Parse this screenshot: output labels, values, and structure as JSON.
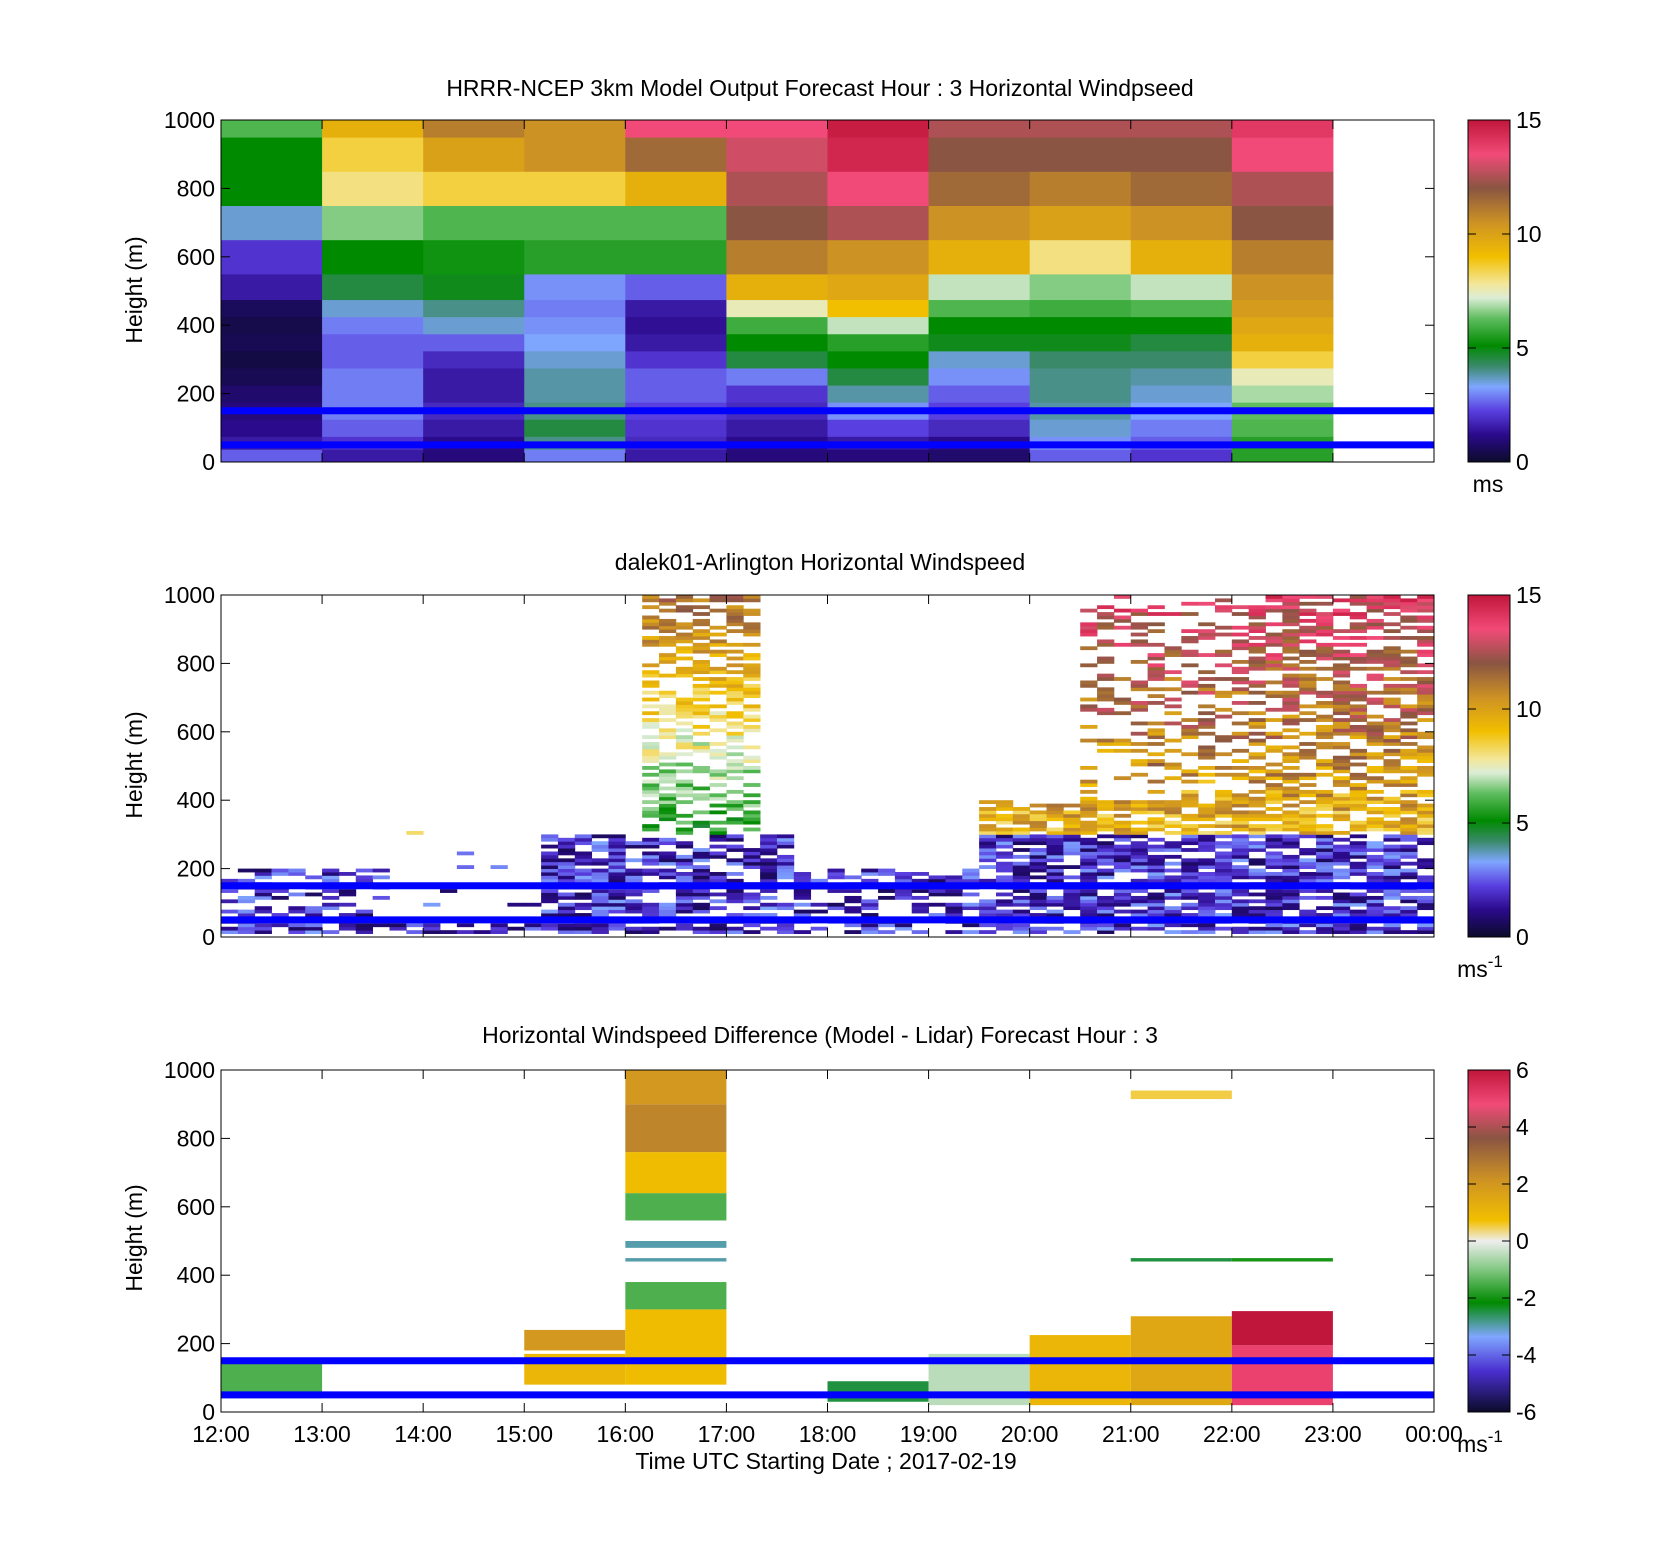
{
  "figure": {
    "xticks": [
      "12:00",
      "13:00",
      "14:00",
      "15:00",
      "16:00",
      "17:00",
      "18:00",
      "19:00",
      "20:00",
      "21:00",
      "22:00",
      "23:00",
      "00:00"
    ],
    "xlabel": "Time UTC  Starting Date ; 2017-02-19",
    "yticks": [
      "0",
      "200",
      "400",
      "600",
      "800",
      "1000"
    ],
    "ylabel": "Height (m)",
    "reference_lines": {
      "heights_m": [
        50,
        150
      ],
      "color": "#0000ff"
    }
  },
  "chart_data": [
    {
      "type": "heatmap",
      "title": "HRRR-NCEP 3km Model Output   Forecast Hour : 3 Horizontal Windpseed",
      "ylabel": "Height (m)",
      "ylim": [
        0,
        1000
      ],
      "xlim_hours": [
        12,
        24
      ],
      "colorbar": {
        "ticks": [
          "0",
          "5",
          "10",
          "15"
        ],
        "range": [
          0,
          15
        ],
        "unit_label": "ms"
      },
      "levels_m": [
        25,
        50,
        100,
        150,
        200,
        250,
        300,
        350,
        400,
        450,
        500,
        600,
        700,
        800,
        900,
        1000
      ],
      "columns": [
        {
          "hour": "12:00",
          "speeds": [
            2.5,
            1.5,
            1.2,
            1.0,
            0.8,
            0.5,
            0.3,
            0.5,
            0.4,
            0.6,
            1.5,
            2.0,
            3.5,
            5.0,
            5.0,
            6.0
          ]
        },
        {
          "hour": "13:00",
          "speeds": [
            1.5,
            2.0,
            2.5,
            2.8,
            2.8,
            2.8,
            2.5,
            2.5,
            2.8,
            3.5,
            4.5,
            5.0,
            6.5,
            8.0,
            8.5,
            9.5
          ]
        },
        {
          "hour": "14:00",
          "speeds": [
            1.0,
            1.2,
            1.5,
            1.8,
            1.5,
            1.5,
            1.8,
            2.5,
            3.5,
            4.0,
            4.8,
            5.2,
            6.0,
            8.5,
            10.0,
            11.0
          ]
        },
        {
          "hour": "15:00",
          "speeds": [
            2.8,
            4.0,
            4.5,
            4.0,
            3.8,
            3.8,
            3.5,
            3.2,
            3.0,
            2.8,
            3.0,
            5.5,
            6.0,
            8.5,
            10.5,
            10.5
          ]
        },
        {
          "hour": "16:00",
          "speeds": [
            1.5,
            1.8,
            2.0,
            2.2,
            2.5,
            2.5,
            2.0,
            1.5,
            1.3,
            1.5,
            2.5,
            5.5,
            6.0,
            9.5,
            11.5,
            13.5
          ]
        },
        {
          "hour": "17:00",
          "speeds": [
            1.0,
            1.2,
            1.5,
            1.8,
            2.0,
            2.8,
            4.5,
            5.0,
            5.8,
            7.5,
            9.5,
            11.0,
            12.0,
            12.5,
            13.0,
            13.5
          ]
        },
        {
          "hour": "18:00",
          "speeds": [
            1.0,
            1.5,
            2.2,
            3.0,
            3.8,
            4.5,
            5.0,
            5.5,
            7.0,
            9.0,
            9.8,
            10.5,
            12.5,
            13.5,
            14.5,
            14.8
          ]
        },
        {
          "hour": "19:00",
          "speeds": [
            0.8,
            1.2,
            1.8,
            2.2,
            2.5,
            3.0,
            3.5,
            4.8,
            5.0,
            6.0,
            7.0,
            9.5,
            10.5,
            11.5,
            12.0,
            12.5
          ]
        },
        {
          "hour": "20:00",
          "speeds": [
            2.5,
            3.0,
            3.5,
            3.8,
            4.0,
            4.0,
            4.2,
            4.8,
            5.0,
            5.8,
            6.5,
            8.0,
            10.0,
            11.0,
            12.0,
            12.5
          ]
        },
        {
          "hour": "21:00",
          "speeds": [
            2.0,
            2.5,
            2.8,
            3.2,
            3.5,
            3.8,
            4.2,
            4.5,
            5.0,
            6.0,
            7.0,
            9.5,
            10.5,
            11.5,
            12.0,
            12.5
          ]
        },
        {
          "hour": "22:00",
          "speeds": [
            5.5,
            5.5,
            6.0,
            6.2,
            6.8,
            7.5,
            8.5,
            9.5,
            9.8,
            10.2,
            10.5,
            11.0,
            12.0,
            12.5,
            13.5,
            14.0
          ]
        }
      ]
    },
    {
      "type": "heatmap",
      "title": "dalek01-Arlington  Horizontal Windspeed",
      "ylabel": "Height (m)",
      "ylim": [
        0,
        1000
      ],
      "xlim_hours": [
        12,
        24
      ],
      "colorbar": {
        "ticks": [
          "0",
          "5",
          "10",
          "15"
        ],
        "range": [
          0,
          15
        ],
        "unit_label": "ms",
        "unit_exponent": "-1"
      }
    },
    {
      "type": "heatmap",
      "title": "Horizontal Windspeed Difference (Model - Lidar) Forecast Hour : 3",
      "ylabel": "Height (m)",
      "xlabel": "Time UTC  Starting Date ; 2017-02-19",
      "ylim": [
        0,
        1000
      ],
      "xlim_hours": [
        12,
        24
      ],
      "colorbar": {
        "ticks": [
          "-6",
          "-4",
          "-2",
          "0",
          "2",
          "4",
          "6"
        ],
        "range": [
          -6,
          6
        ],
        "unit_label": "ms",
        "unit_exponent": "-1"
      },
      "cells": [
        {
          "hours": [
            12,
            13
          ],
          "height_m": [
            40,
            150
          ],
          "diff": -1.5
        },
        {
          "hours": [
            15,
            16
          ],
          "height_m": [
            80,
            170
          ],
          "diff": 1.0
        },
        {
          "hours": [
            15,
            16
          ],
          "height_m": [
            180,
            240
          ],
          "diff": 2.0
        },
        {
          "hours": [
            16,
            17
          ],
          "height_m": [
            80,
            300
          ],
          "diff": 0.8
        },
        {
          "hours": [
            16,
            17
          ],
          "height_m": [
            300,
            380
          ],
          "diff": -1.5
        },
        {
          "hours": [
            16,
            17
          ],
          "height_m": [
            440,
            450
          ],
          "diff": -3.0
        },
        {
          "hours": [
            16,
            17
          ],
          "height_m": [
            480,
            500
          ],
          "diff": -3.0
        },
        {
          "hours": [
            16,
            17
          ],
          "height_m": [
            560,
            640
          ],
          "diff": -1.5
        },
        {
          "hours": [
            16,
            17
          ],
          "height_m": [
            640,
            760
          ],
          "diff": 0.8
        },
        {
          "hours": [
            16,
            17
          ],
          "height_m": [
            760,
            900
          ],
          "diff": 2.5
        },
        {
          "hours": [
            16,
            17
          ],
          "height_m": [
            900,
            1000
          ],
          "diff": 2.0
        },
        {
          "hours": [
            18,
            19
          ],
          "height_m": [
            30,
            90
          ],
          "diff": -2.5
        },
        {
          "hours": [
            19,
            20
          ],
          "height_m": [
            20,
            170
          ],
          "diff": -0.5
        },
        {
          "hours": [
            20,
            21
          ],
          "height_m": [
            20,
            225
          ],
          "diff": 1.0
        },
        {
          "hours": [
            21,
            22
          ],
          "height_m": [
            20,
            280
          ],
          "diff": 1.5
        },
        {
          "hours": [
            21,
            22
          ],
          "height_m": [
            440,
            450
          ],
          "diff": -2.5
        },
        {
          "hours": [
            21,
            22
          ],
          "height_m": [
            915,
            940
          ],
          "diff": 0.5
        },
        {
          "hours": [
            22,
            23
          ],
          "height_m": [
            20,
            195
          ],
          "diff": 5.0
        },
        {
          "hours": [
            22,
            23
          ],
          "height_m": [
            195,
            295
          ],
          "diff": 6.0
        },
        {
          "hours": [
            22,
            23
          ],
          "height_m": [
            440,
            450
          ],
          "diff": -2.0
        }
      ]
    }
  ]
}
